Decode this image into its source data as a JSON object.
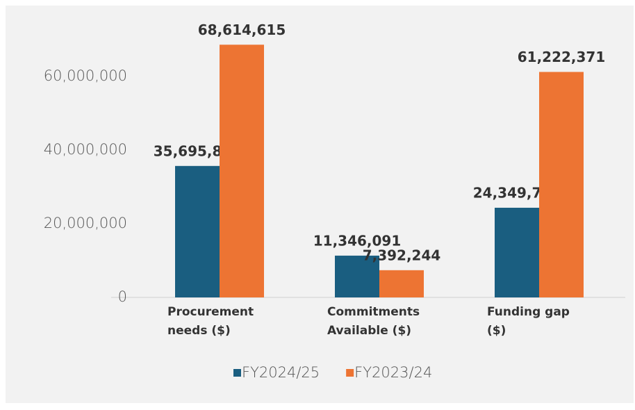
{
  "chart_data": {
    "type": "bar",
    "categories": [
      "Procurement needs ($)",
      "Commitments Available ($)",
      "Funding gap ($)"
    ],
    "series": [
      {
        "name": "FY2024/25",
        "color": "#1a5e80",
        "values": [
          35695860,
          11346091,
          24349769
        ],
        "value_labels": [
          "35,695,860",
          "11,346,091",
          "24,349,769"
        ]
      },
      {
        "name": "FY2023/24",
        "color": "#ed7433",
        "values": [
          68614615,
          7392244,
          61222371
        ],
        "value_labels": [
          "68,614,615",
          "7,392,244",
          "61,222,371"
        ]
      }
    ],
    "ylim": [
      0,
      70000000
    ],
    "yticks": [
      0,
      {
        "value": 20000000,
        "label": "20,000,000"
      },
      {
        "value": 40000000,
        "label": "40,000,000"
      },
      {
        "value": 60000000,
        "label": "60,000,000"
      }
    ],
    "grid": false,
    "legend": "bottom"
  }
}
